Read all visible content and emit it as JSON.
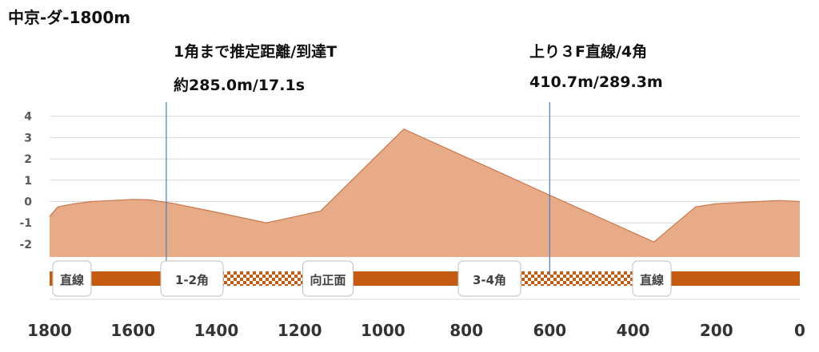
{
  "chart_data": {
    "type": "area",
    "title": "中京-ダ-1800m",
    "xlabel": "",
    "ylabel": "",
    "xlim": [
      1800,
      0
    ],
    "ylim": [
      -2.5,
      4
    ],
    "x_ticks": [
      "1800",
      "1600",
      "1400",
      "1200",
      "1000",
      "800",
      "600",
      "400",
      "200",
      "0"
    ],
    "y_ticks": [
      "4",
      "3",
      "2",
      "1",
      "0",
      "-1",
      "-2"
    ],
    "series": [
      {
        "x": [
          1800,
          1780,
          1740,
          1700,
          1650,
          1600,
          1560,
          1500,
          1400,
          1280,
          1150,
          950,
          600,
          350,
          250,
          200,
          100,
          50,
          0
        ],
        "y": [
          -0.7,
          -0.25,
          -0.1,
          0.0,
          0.05,
          0.1,
          0.08,
          -0.1,
          -0.5,
          -1.0,
          -0.45,
          3.4,
          0.3,
          -1.9,
          -0.25,
          -0.1,
          0.0,
          0.05,
          0.0
        ]
      }
    ],
    "markers": [
      {
        "x": 1520,
        "lines": [
          "1角まで推定距離/到達T",
          "約285.0m/17.1s"
        ]
      },
      {
        "x": 600,
        "lines": [
          "上り３F直線/4角",
          "410.7m/289.3m"
        ]
      }
    ],
    "sections": [
      {
        "from": 1800,
        "to": 1520,
        "label": "直線",
        "pattern": "solid"
      },
      {
        "from": 1520,
        "to": 1180,
        "label": "1-2角",
        "pattern": "checker"
      },
      {
        "from": 1180,
        "to": 780,
        "label": "向正面",
        "pattern": "solid"
      },
      {
        "from": 780,
        "to": 360,
        "label": "3-4角",
        "pattern": "checker"
      },
      {
        "from": 360,
        "to": 0,
        "label": "直線",
        "pattern": "solid"
      }
    ],
    "colors": {
      "area_fill": "#e8ab87",
      "area_line": "#c8774a",
      "marker_line": "#4a7fc1",
      "section": "#c55a11",
      "gridline": "#d9d9d9"
    }
  }
}
